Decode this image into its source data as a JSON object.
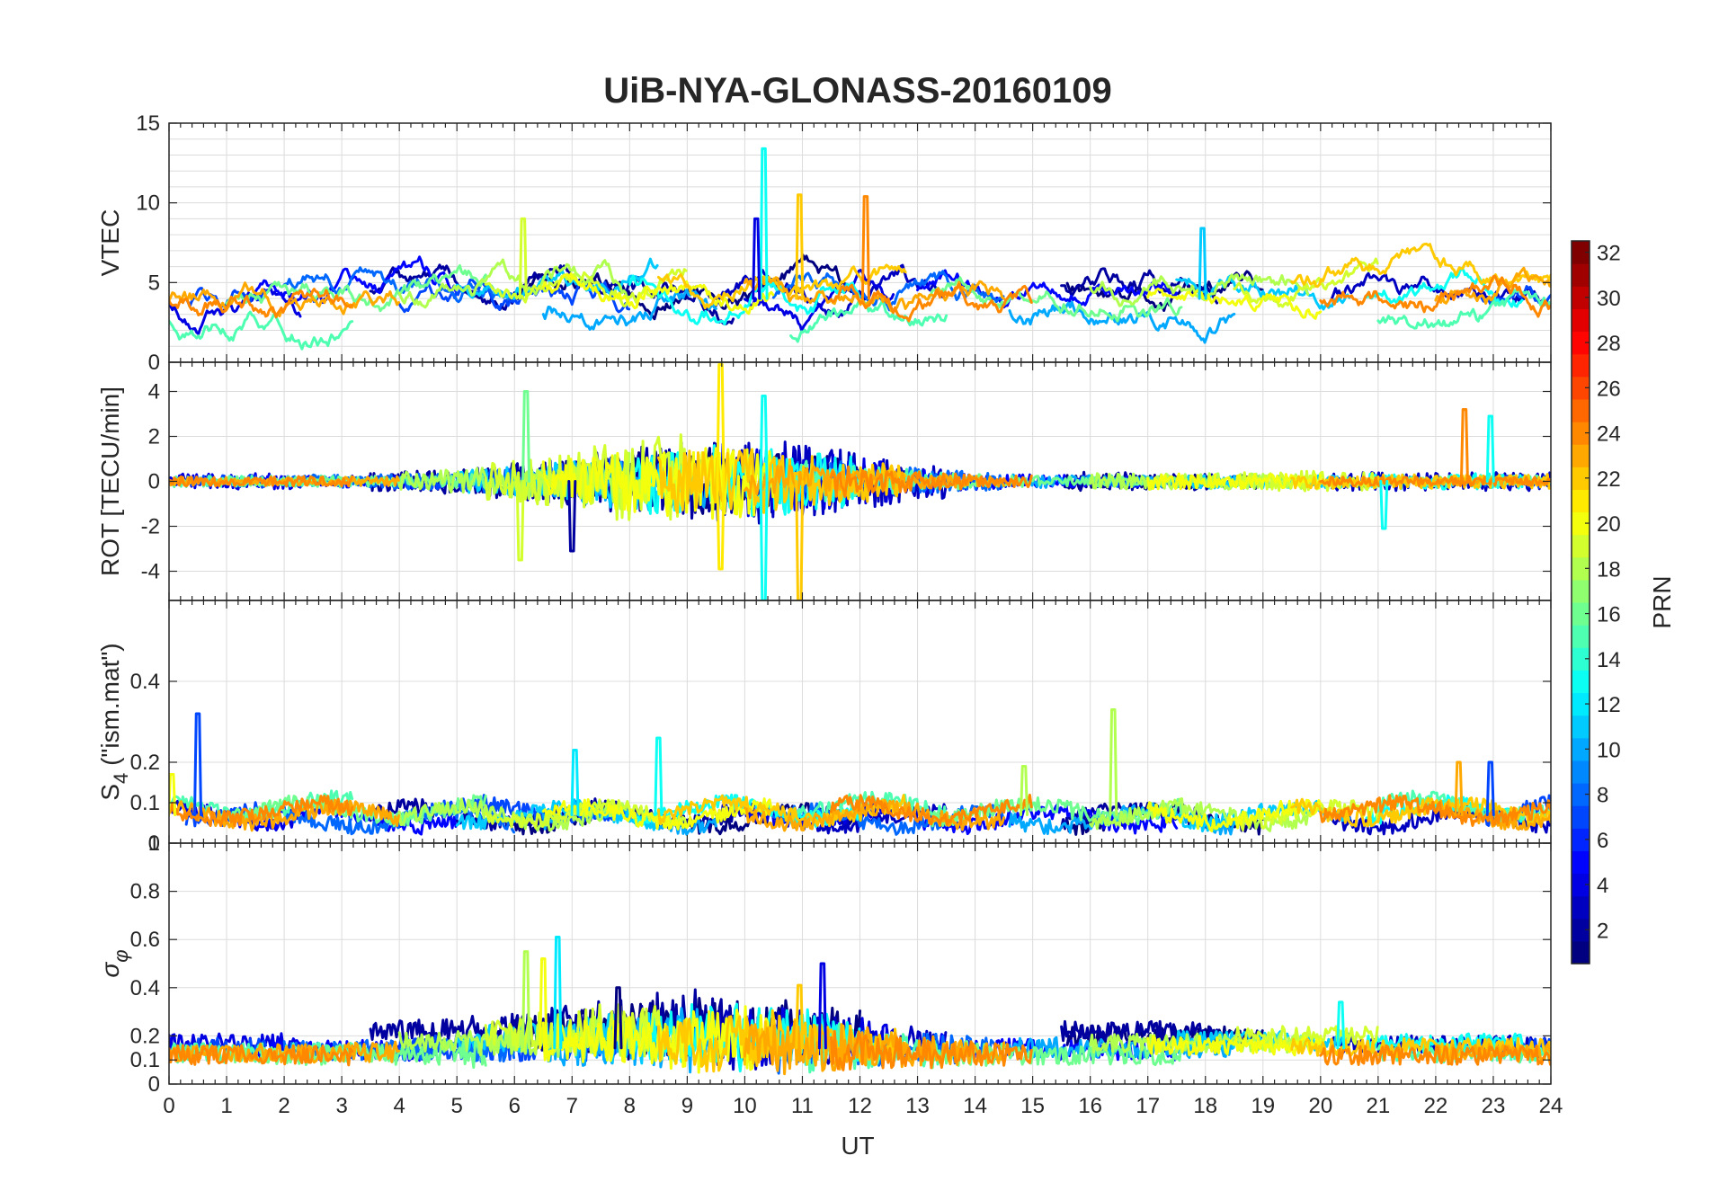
{
  "chart_data": {
    "type": "line",
    "title": "UiB-NYA-GLONASS-20160109",
    "xlabel": "UT",
    "xlim": [
      0,
      24
    ],
    "xticks": [
      "0",
      "1",
      "2",
      "3",
      "4",
      "5",
      "6",
      "7",
      "8",
      "9",
      "10",
      "11",
      "12",
      "13",
      "14",
      "15",
      "16",
      "17",
      "18",
      "19",
      "20",
      "21",
      "22",
      "23",
      "24"
    ],
    "colorbar": {
      "label": "PRN",
      "range": [
        1,
        32
      ],
      "ticks": [
        "2",
        "4",
        "6",
        "8",
        "10",
        "12",
        "14",
        "16",
        "18",
        "20",
        "22",
        "24",
        "26",
        "28",
        "30",
        "32"
      ],
      "colormap": "jet"
    },
    "panels": [
      {
        "id": "vtec",
        "ylabel": "VTEC",
        "ylim": [
          0,
          15
        ],
        "yticks": [
          {
            "v": 0,
            "t": "0"
          },
          {
            "v": 5,
            "t": "5"
          },
          {
            "v": 10,
            "t": "10"
          },
          {
            "v": 15,
            "t": "15"
          }
        ],
        "grid_y": [
          0,
          1,
          2,
          3,
          4,
          5,
          6,
          7,
          8,
          9,
          10,
          11,
          12,
          13,
          14,
          15
        ]
      },
      {
        "id": "rot",
        "ylabel": "ROT [TECU/min]",
        "ylim": [
          -5.3,
          5.3
        ],
        "yticks": [
          {
            "v": -4,
            "t": "-4"
          },
          {
            "v": -2,
            "t": "-2"
          },
          {
            "v": 0,
            "t": "0"
          },
          {
            "v": 2,
            "t": "2"
          },
          {
            "v": 4,
            "t": "4"
          }
        ],
        "grid_y": [
          -4,
          -2,
          0,
          2,
          4
        ]
      },
      {
        "id": "s4",
        "ylabel": "S4 (\"ism.mat\")",
        "ylabel_main": "S",
        "ylabel_sub": "4",
        "ylabel_rest": " (\"ism.mat\")",
        "ylim": [
          0,
          0.6
        ],
        "yticks": [
          {
            "v": 0,
            "t": "0"
          },
          {
            "v": 0.1,
            "t": "0.1"
          },
          {
            "v": 0.2,
            "t": "0.2"
          },
          {
            "v": 0.4,
            "t": "0.4"
          }
        ],
        "grid_y": [
          0.1,
          0.2,
          0.4
        ]
      },
      {
        "id": "sigphi",
        "ylabel": "σφ",
        "ylabel_main": "σ",
        "ylabel_sub": "φ",
        "ylim": [
          0,
          1.0
        ],
        "yticks": [
          {
            "v": 0,
            "t": "0"
          },
          {
            "v": 0.1,
            "t": "0.1"
          },
          {
            "v": 0.2,
            "t": "0.2"
          },
          {
            "v": 0.4,
            "t": "0.4"
          },
          {
            "v": 0.6,
            "t": "0.6"
          },
          {
            "v": 0.8,
            "t": "0.8"
          },
          {
            "v": 1.0,
            "t": "1"
          }
        ],
        "grid_y": [
          0.1,
          0.2,
          0.4,
          0.6,
          0.8
        ]
      }
    ],
    "series": [
      {
        "prn": 1,
        "segments": [
          [
            6.0,
            12.0
          ],
          [
            15.6,
            19.0
          ]
        ],
        "vtec": 4.8,
        "rot_amp": 0.9,
        "s4": 0.06,
        "sig": 0.2,
        "seed": 11
      },
      {
        "prn": 2,
        "segments": [
          [
            3.5,
            9.8
          ],
          [
            15.5,
            18.2
          ]
        ],
        "vtec": 4.5,
        "rot_amp": 1.1,
        "s4": 0.07,
        "sig": 0.22,
        "seed": 12
      },
      {
        "prn": 3,
        "segments": [
          [
            9.5,
            13.5
          ],
          [
            20.2,
            24.0
          ]
        ],
        "vtec": 4.2,
        "rot_amp": 1.2,
        "s4": 0.06,
        "sig": 0.16,
        "seed": 13
      },
      {
        "prn": 4,
        "segments": [
          [
            0.0,
            2.3
          ],
          [
            10.0,
            12.6
          ]
        ],
        "vtec": 3.3,
        "rot_amp": 1.0,
        "s4": 0.07,
        "sig": 0.17,
        "seed": 14
      },
      {
        "prn": 5,
        "segments": [
          [
            1.5,
            5.0
          ],
          [
            13.0,
            17.5
          ]
        ],
        "vtec": 4.6,
        "rot_amp": 0.7,
        "s4": 0.06,
        "sig": 0.14,
        "seed": 15
      },
      {
        "prn": 7,
        "segments": [
          [
            0.3,
            1.7
          ],
          [
            4.0,
            8.0
          ],
          [
            22.8,
            24.0
          ]
        ],
        "vtec": 4.0,
        "rot_amp": 0.8,
        "s4": 0.08,
        "sig": 0.15,
        "seed": 16
      },
      {
        "prn": 8,
        "segments": [
          [
            2.0,
            6.0
          ],
          [
            10.5,
            14.5
          ]
        ],
        "vtec": 4.7,
        "rot_amp": 0.8,
        "s4": 0.06,
        "sig": 0.14,
        "seed": 17
      },
      {
        "prn": 10,
        "segments": [
          [
            6.5,
            9.5
          ],
          [
            14.6,
            18.5
          ]
        ],
        "vtec": 3.2,
        "rot_amp": 0.7,
        "s4": 0.06,
        "sig": 0.15,
        "seed": 18
      },
      {
        "prn": 11,
        "segments": [
          [
            5.0,
            8.5
          ],
          [
            17.5,
            20.5
          ]
        ],
        "vtec": 5.0,
        "rot_amp": 0.9,
        "s4": 0.07,
        "sig": 0.18,
        "seed": 19
      },
      {
        "prn": 13,
        "segments": [
          [
            8.0,
            12.0
          ],
          [
            20.8,
            23.5
          ]
        ],
        "vtec": 4.4,
        "rot_amp": 1.0,
        "s4": 0.08,
        "sig": 0.17,
        "seed": 20
      },
      {
        "prn": 15,
        "segments": [
          [
            0.0,
            3.2
          ],
          [
            10.8,
            13.5
          ],
          [
            21.0,
            24.0
          ]
        ],
        "vtec": 2.4,
        "rot_amp": 0.7,
        "s4": 0.09,
        "sig": 0.13,
        "seed": 21
      },
      {
        "prn": 16,
        "segments": [
          [
            1.0,
            5.5
          ],
          [
            13.2,
            17.6
          ]
        ],
        "vtec": 4.0,
        "rot_amp": 0.6,
        "s4": 0.08,
        "sig": 0.12,
        "seed": 22
      },
      {
        "prn": 18,
        "segments": [
          [
            4.0,
            8.0
          ],
          [
            16.0,
            19.8
          ]
        ],
        "vtec": 4.5,
        "rot_amp": 1.0,
        "s4": 0.07,
        "sig": 0.17,
        "seed": 23
      },
      {
        "prn": 19,
        "segments": [
          [
            5.5,
            9.0
          ],
          [
            18.5,
            21.0
          ]
        ],
        "vtec": 4.9,
        "rot_amp": 1.3,
        "s4": 0.07,
        "sig": 0.2,
        "seed": 24
      },
      {
        "prn": 20,
        "segments": [
          [
            6.5,
            10.5
          ],
          [
            17.0,
            20.0
          ]
        ],
        "vtec": 4.2,
        "rot_amp": 1.0,
        "s4": 0.07,
        "sig": 0.16,
        "seed": 25
      },
      {
        "prn": 22,
        "segments": [
          [
            8.5,
            12.8
          ],
          [
            19.5,
            24.0
          ]
        ],
        "vtec": 5.0,
        "rot_amp": 0.9,
        "s4": 0.08,
        "sig": 0.15,
        "seed": 26
      },
      {
        "prn": 23,
        "segments": [
          [
            0.0,
            4.0
          ],
          [
            10.0,
            14.5
          ],
          [
            22.0,
            24.0
          ]
        ],
        "vtec": 4.0,
        "rot_amp": 0.5,
        "s4": 0.07,
        "sig": 0.13,
        "seed": 27
      },
      {
        "prn": 24,
        "segments": [
          [
            0.0,
            3.2
          ],
          [
            11.5,
            15.0
          ],
          [
            20.0,
            24.0
          ]
        ],
        "vtec": 3.8,
        "rot_amp": 0.6,
        "s4": 0.08,
        "sig": 0.12,
        "seed": 28
      }
    ],
    "spikes": [
      {
        "prn": 13,
        "panel": "vtec",
        "x": 10.33,
        "y": 13.4
      },
      {
        "prn": 22,
        "panel": "vtec",
        "x": 10.95,
        "y": 10.5
      },
      {
        "prn": 24,
        "panel": "vtec",
        "x": 12.1,
        "y": 10.4
      },
      {
        "prn": 11,
        "panel": "vtec",
        "x": 17.95,
        "y": 8.4
      },
      {
        "prn": 19,
        "panel": "vtec",
        "x": 6.15,
        "y": 9.0
      },
      {
        "prn": 4,
        "panel": "vtec",
        "x": 10.2,
        "y": 9.0
      },
      {
        "prn": 21,
        "panel": "rot",
        "x": 9.58,
        "y": 5.2
      },
      {
        "prn": 21,
        "panel": "rot",
        "x": 9.58,
        "y": -3.9
      },
      {
        "prn": 16,
        "panel": "rot",
        "x": 6.2,
        "y": 4.0
      },
      {
        "prn": 19,
        "panel": "rot",
        "x": 6.1,
        "y": -3.5
      },
      {
        "prn": 13,
        "panel": "rot",
        "x": 10.33,
        "y": 3.8
      },
      {
        "prn": 13,
        "panel": "rot",
        "x": 10.33,
        "y": -5.3
      },
      {
        "prn": 22,
        "panel": "rot",
        "x": 10.95,
        "y": -5.3
      },
      {
        "prn": 2,
        "panel": "rot",
        "x": 7.0,
        "y": -3.1
      },
      {
        "prn": 24,
        "panel": "rot",
        "x": 22.5,
        "y": 3.2
      },
      {
        "prn": 13,
        "panel": "rot",
        "x": 22.95,
        "y": 2.9
      },
      {
        "prn": 13,
        "panel": "rot",
        "x": 21.1,
        "y": -2.1
      },
      {
        "prn": 7,
        "panel": "s4",
        "x": 0.5,
        "y": 0.32
      },
      {
        "prn": 18,
        "panel": "s4",
        "x": 16.4,
        "y": 0.33
      },
      {
        "prn": 13,
        "panel": "s4",
        "x": 8.5,
        "y": 0.26
      },
      {
        "prn": 12,
        "panel": "s4",
        "x": 7.05,
        "y": 0.23
      },
      {
        "prn": 23,
        "panel": "s4",
        "x": 22.4,
        "y": 0.2
      },
      {
        "prn": 7,
        "panel": "s4",
        "x": 22.95,
        "y": 0.2
      },
      {
        "prn": 18,
        "panel": "s4",
        "x": 14.85,
        "y": 0.19
      },
      {
        "prn": 20,
        "panel": "s4",
        "x": 0.05,
        "y": 0.17
      },
      {
        "prn": 12,
        "panel": "sigphi",
        "x": 6.75,
        "y": 0.61
      },
      {
        "prn": 18,
        "panel": "sigphi",
        "x": 6.2,
        "y": 0.55
      },
      {
        "prn": 20,
        "panel": "sigphi",
        "x": 6.5,
        "y": 0.52
      },
      {
        "prn": 4,
        "panel": "sigphi",
        "x": 11.35,
        "y": 0.5
      },
      {
        "prn": 22,
        "panel": "sigphi",
        "x": 10.95,
        "y": 0.41
      },
      {
        "prn": 13,
        "panel": "sigphi",
        "x": 20.35,
        "y": 0.34
      },
      {
        "prn": 1,
        "panel": "sigphi",
        "x": 7.8,
        "y": 0.4
      }
    ]
  }
}
